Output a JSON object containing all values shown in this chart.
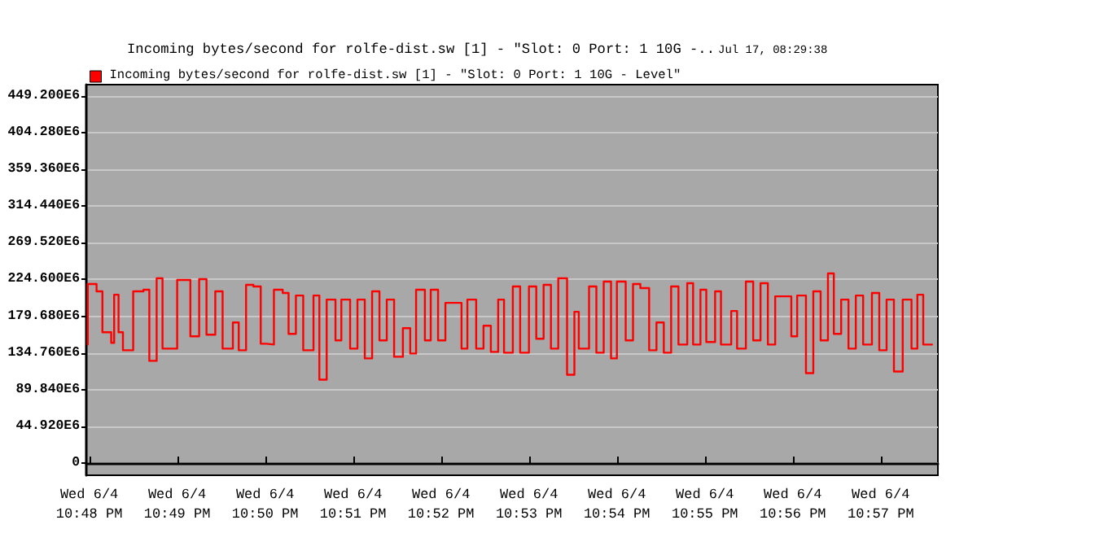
{
  "chart_data": {
    "type": "step",
    "title": "Incoming bytes/second for rolfe-dist.sw [1] - \"Slot: 0 Port: 1 10G -..",
    "subtitle": "Jul 17, 08:29:38",
    "legend": "top left",
    "grid": "y",
    "marker": "none",
    "line_style": "solid",
    "xlim": [
      "--06-04T22:47:58",
      "--06-04T22:57:39"
    ],
    "xticks": [
      {
        "value": "--06-04T22:48",
        "label": "Wed 6/4\n10:48 PM"
      },
      {
        "value": "--06-04T22:49",
        "label": "Wed 6/4\n10:49 PM"
      },
      {
        "value": "--06-04T22:50",
        "label": "Wed 6/4\n10:50 PM"
      },
      {
        "value": "--06-04T22:51",
        "label": "Wed 6/4\n10:51 PM"
      },
      {
        "value": "--06-04T22:52",
        "label": "Wed 6/4\n10:52 PM"
      },
      {
        "value": "--06-04T22:53",
        "label": "Wed 6/4\n10:53 PM"
      },
      {
        "value": "--06-04T22:54",
        "label": "Wed 6/4\n10:54 PM"
      },
      {
        "value": "--06-04T22:55",
        "label": "Wed 6/4\n10:55 PM"
      },
      {
        "value": "--06-04T22:56",
        "label": "Wed 6/4\n10:56 PM"
      },
      {
        "value": "--06-04T22:57",
        "label": "Wed 6/4\n10:57 PM"
      }
    ],
    "ylim": [
      -15000000,
      463000000
    ],
    "yticks": [
      0,
      {
        "value": 44920000,
        "label": "44.920E6"
      },
      {
        "value": 89840000,
        "label": "89.840E6"
      },
      {
        "value": 134760000,
        "label": "134.760E6"
      },
      {
        "value": 179680000,
        "label": "179.680E6"
      },
      {
        "value": 224600000,
        "label": "224.600E6"
      },
      {
        "value": 269520000,
        "label": "269.520E6"
      },
      {
        "value": 314440000,
        "label": "314.440E6"
      },
      {
        "value": 359360000,
        "label": "359.360E6"
      },
      {
        "value": 404280000,
        "label": "404.280E6"
      },
      {
        "value": 449200000,
        "label": "449.200E6"
      }
    ],
    "series": [
      {
        "name": "Incoming bytes/second for rolfe-dist.sw [1] - \"Slot: 0 Port: 1 10G - Level\"",
        "color": "#ff0000",
        "x": [
          "--06-04T22:47:59",
          "--06-04T22:48:05",
          "--06-04T22:48:09",
          "--06-04T22:48:15",
          "--06-04T22:48:17",
          "--06-04T22:48:20",
          "--06-04T22:48:23",
          "--06-04T22:48:26",
          "--06-04T22:48:30",
          "--06-04T22:48:37",
          "--06-04T22:48:41",
          "--06-04T22:48:46",
          "--06-04T22:48:50",
          "--06-04T22:48:57",
          "--06-04T22:49:00",
          "--06-04T22:49:09",
          "--06-04T22:49:15",
          "--06-04T22:49:20",
          "--06-04T22:49:26",
          "--06-04T22:49:31",
          "--06-04T22:49:38",
          "--06-04T22:49:42",
          "--06-04T22:49:47",
          "--06-04T22:49:52",
          "--06-04T22:49:57",
          "--06-04T22:50:01",
          "--06-04T22:50:06",
          "--06-04T22:50:12",
          "--06-04T22:50:16",
          "--06-04T22:50:21",
          "--06-04T22:50:26",
          "--06-04T22:50:33",
          "--06-04T22:50:37",
          "--06-04T22:50:42",
          "--06-04T22:50:48",
          "--06-04T22:50:52",
          "--06-04T22:50:58",
          "--06-04T22:51:03",
          "--06-04T22:51:08",
          "--06-04T22:51:13",
          "--06-04T22:51:18",
          "--06-04T22:51:23",
          "--06-04T22:51:28",
          "--06-04T22:51:34",
          "--06-04T22:51:39",
          "--06-04T22:51:43",
          "--06-04T22:51:49",
          "--06-04T22:51:53",
          "--06-04T22:51:58",
          "--06-04T22:52:03",
          "--06-04T22:52:08",
          "--06-04T22:52:14",
          "--06-04T22:52:18",
          "--06-04T22:52:24",
          "--06-04T22:52:29",
          "--06-04T22:52:34",
          "--06-04T22:52:39",
          "--06-04T22:52:43",
          "--06-04T22:52:49",
          "--06-04T22:52:54",
          "--06-04T22:53:00",
          "--06-04T22:53:05",
          "--06-04T22:53:10",
          "--06-04T22:53:15",
          "--06-04T22:53:20",
          "--06-04T22:53:26",
          "--06-04T22:53:31",
          "--06-04T22:53:34",
          "--06-04T22:53:41",
          "--06-04T22:53:46",
          "--06-04T22:53:51",
          "--06-04T22:53:56",
          "--06-04T22:54:00",
          "--06-04T22:54:06",
          "--06-04T22:54:11",
          "--06-04T22:54:16",
          "--06-04T22:54:22",
          "--06-04T22:54:27",
          "--06-04T22:54:32",
          "--06-04T22:54:37",
          "--06-04T22:54:42",
          "--06-04T22:54:48",
          "--06-04T22:54:52",
          "--06-04T22:54:57",
          "--06-04T22:55:01",
          "--06-04T22:55:07",
          "--06-04T22:55:11",
          "--06-04T22:55:18",
          "--06-04T22:55:22",
          "--06-04T22:55:28",
          "--06-04T22:55:33",
          "--06-04T22:55:38",
          "--06-04T22:55:43",
          "--06-04T22:55:48",
          "--06-04T22:55:53",
          "--06-04T22:55:59",
          "--06-04T22:56:03",
          "--06-04T22:56:09",
          "--06-04T22:56:14",
          "--06-04T22:56:19",
          "--06-04T22:56:24",
          "--06-04T22:56:28",
          "--06-04T22:56:33",
          "--06-04T22:56:38",
          "--06-04T22:56:43",
          "--06-04T22:56:48",
          "--06-04T22:56:54",
          "--06-04T22:56:59",
          "--06-04T22:57:04",
          "--06-04T22:57:09",
          "--06-04T22:57:15",
          "--06-04T22:57:21",
          "--06-04T22:57:25",
          "--06-04T22:57:29",
          "--06-04T22:57:35"
        ],
        "values": [
          145000000,
          219000000,
          210000000,
          160000000,
          147000000,
          206000000,
          160000000,
          138000000,
          138000000,
          210000000,
          212000000,
          125000000,
          226000000,
          140000000,
          140000000,
          224000000,
          155000000,
          225000000,
          157000000,
          210000000,
          140000000,
          172000000,
          138000000,
          218000000,
          216000000,
          146000000,
          145000000,
          212000000,
          208000000,
          158000000,
          205000000,
          138000000,
          205000000,
          102000000,
          200000000,
          150000000,
          200000000,
          140000000,
          200000000,
          128000000,
          210000000,
          150000000,
          200000000,
          130000000,
          165000000,
          134000000,
          212000000,
          150000000,
          212000000,
          150000000,
          196000000,
          196000000,
          140000000,
          200000000,
          140000000,
          168000000,
          136000000,
          200000000,
          135000000,
          216000000,
          135000000,
          216000000,
          152000000,
          218000000,
          140000000,
          226000000,
          108000000,
          185000000,
          140000000,
          216000000,
          135000000,
          222000000,
          128000000,
          222000000,
          150000000,
          219000000,
          214000000,
          138000000,
          172000000,
          135000000,
          216000000,
          145000000,
          220000000,
          145000000,
          212000000,
          148000000,
          210000000,
          145000000,
          186000000,
          140000000,
          222000000,
          150000000,
          220000000,
          145000000,
          204000000,
          204000000,
          155000000,
          205000000,
          110000000,
          210000000,
          150000000,
          232000000,
          158000000,
          200000000,
          140000000,
          205000000,
          145000000,
          208000000,
          138000000,
          200000000,
          112000000,
          200000000,
          140000000,
          206000000,
          145000000
        ]
      }
    ]
  }
}
